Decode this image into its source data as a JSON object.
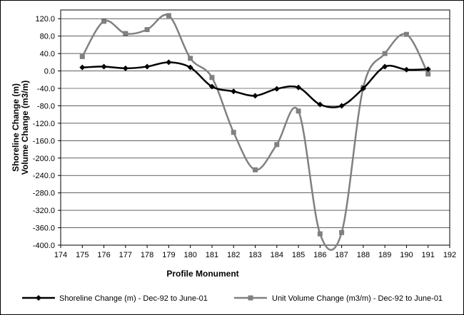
{
  "chart_data": {
    "type": "line",
    "xlabel": "Profile Monument",
    "ylabel": [
      "Shoreline Change (m)",
      "Volume Change (m3/m)"
    ],
    "xlim": [
      174,
      192
    ],
    "ylim": [
      -400,
      140
    ],
    "x_ticks": [
      "174",
      "175",
      "176",
      "177",
      "178",
      "179",
      "180",
      "181",
      "182",
      "183",
      "184",
      "185",
      "186",
      "187",
      "188",
      "189",
      "190",
      "191",
      "192"
    ],
    "y_ticks": [
      "120.0",
      "80.0",
      "40.0",
      "0.0",
      "-40.0",
      "-80.0",
      "-120.0",
      "-160.0",
      "-200.0",
      "-240.0",
      "-280.0",
      "-320.0",
      "-360.0",
      "-400.0"
    ],
    "grid": "horizontal",
    "legend_position": "bottom",
    "x": [
      175,
      176,
      177,
      178,
      179,
      180,
      181,
      182,
      183,
      184,
      185,
      186,
      187,
      188,
      189,
      190,
      191
    ],
    "series": [
      {
        "name": "Shoreline Change (m) - Dec-92 to June-01",
        "color": "#000000",
        "marker": "diamond",
        "values": [
          8,
          10,
          6,
          10,
          20,
          8,
          -36,
          -47,
          -57,
          -41,
          -38,
          -77,
          -80,
          -40,
          10,
          3,
          4
        ]
      },
      {
        "name": "Unit Volume Change (m3/m) - Dec-92 to June-01",
        "color": "#808080",
        "marker": "square",
        "values": [
          33,
          114,
          86,
          95,
          127,
          29,
          -15,
          -141,
          -227,
          -169,
          -92,
          -374,
          -371,
          -38,
          40,
          84,
          -7
        ]
      }
    ]
  }
}
